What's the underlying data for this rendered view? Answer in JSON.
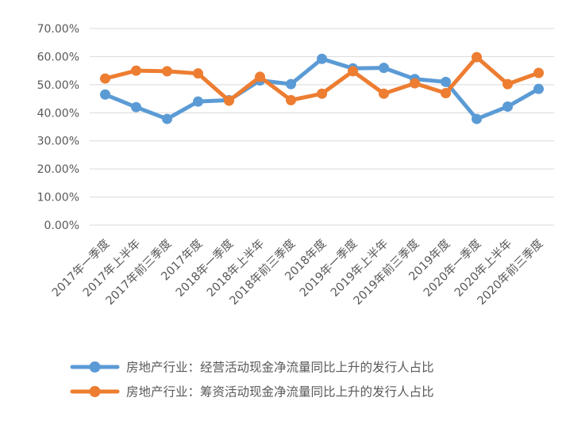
{
  "chart_data": {
    "type": "line",
    "title": "",
    "xlabel": "",
    "ylabel": "",
    "categories": [
      "2017年一季度",
      "2017年上半年",
      "2017年前三季度",
      "2017年度",
      "2018年一季度",
      "2018年上半年",
      "2018年前三季度",
      "2018年度",
      "2019年一季度",
      "2019年上半年",
      "2019年前三季度",
      "2019年度",
      "2020年一季度",
      "2020年上半年",
      "2020年前三季度"
    ],
    "series": [
      {
        "name": "房地产行业：经营活动现金净流量同比上升的发行人占比",
        "color": "#5B9BD5",
        "values": [
          46.5,
          42.0,
          37.8,
          44.0,
          44.5,
          51.5,
          50.2,
          59.2,
          55.8,
          56.0,
          52.0,
          51.0,
          37.8,
          42.2,
          48.5
        ]
      },
      {
        "name": "房地产行业：筹资活动现金净流量同比上升的发行人占比",
        "color": "#ED7D31",
        "values": [
          52.2,
          55.0,
          54.8,
          54.0,
          44.3,
          52.8,
          44.5,
          46.8,
          54.8,
          46.8,
          50.5,
          47.0,
          59.8,
          50.2,
          54.2
        ]
      }
    ],
    "y_ticks": [
      "0.00%",
      "10.00%",
      "20.00%",
      "30.00%",
      "40.00%",
      "50.00%",
      "60.00%",
      "70.00%"
    ],
    "ylim": [
      0,
      70
    ],
    "grid": true,
    "legend_position": "bottom"
  }
}
